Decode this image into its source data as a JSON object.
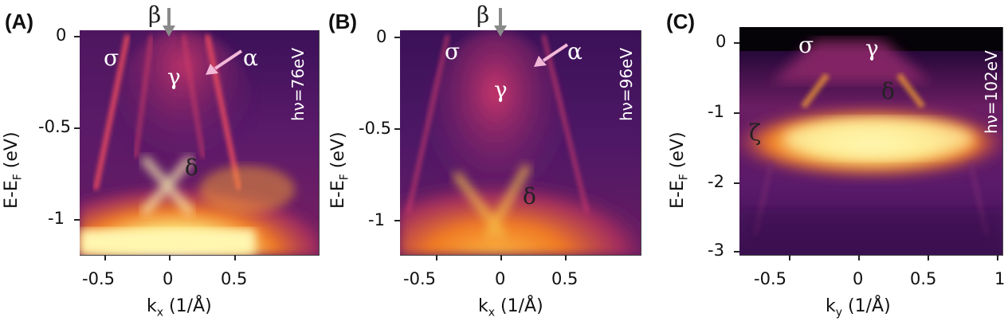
{
  "panels": [
    {
      "letter": "(A)",
      "xlabel": "kx (1/Å)",
      "xlabel_main": "k",
      "xlabel_sub": "x",
      "xlabel_unit": "(1/Å)",
      "ylabel_main": "E-E",
      "ylabel_sub": "F",
      "ylabel_unit": "(eV)",
      "xticks": [
        "-0.5",
        "0",
        "0.5"
      ],
      "yticks": [
        "0",
        "-0.5",
        "-1"
      ],
      "photon": "hν=76eV",
      "labels": {
        "sigma": "σ",
        "beta": "β",
        "gamma": "γ",
        "alpha": "α",
        "delta": "δ"
      }
    },
    {
      "letter": "(B)",
      "xlabel_main": "k",
      "xlabel_sub": "x",
      "xlabel_unit": "(1/Å)",
      "ylabel_main": "E-E",
      "ylabel_sub": "F",
      "ylabel_unit": "(eV)",
      "xticks": [
        "-0.5",
        "0",
        "0.5"
      ],
      "yticks": [
        "0",
        "-0.5",
        "-1"
      ],
      "photon": "hν=96eV",
      "labels": {
        "sigma": "σ",
        "beta": "β",
        "gamma": "γ",
        "alpha": "α",
        "delta": "δ"
      }
    },
    {
      "letter": "(C)",
      "xlabel_main": "k",
      "xlabel_sub": "y",
      "xlabel_unit": "(1/Å)",
      "ylabel_main": "E-E",
      "ylabel_sub": "F",
      "ylabel_unit": "(eV)",
      "xticks": [
        "-0.5",
        "0",
        "0.5",
        "1"
      ],
      "yticks": [
        "0",
        "-1",
        "-2",
        "-3"
      ],
      "photon": "hν=102eV",
      "labels": {
        "sigma": "σ",
        "gamma": "γ",
        "delta": "δ",
        "zeta": "ζ"
      }
    }
  ],
  "colors": {
    "dark": "#2a0a3d",
    "purple": "#4b1663",
    "magenta": "#b0305e",
    "orange": "#f07a24",
    "yellow": "#fbe47a",
    "pale": "#fff8b0",
    "arrow_grey": "#8a8a8a",
    "arrow_pink": "#f2b8d8"
  }
}
